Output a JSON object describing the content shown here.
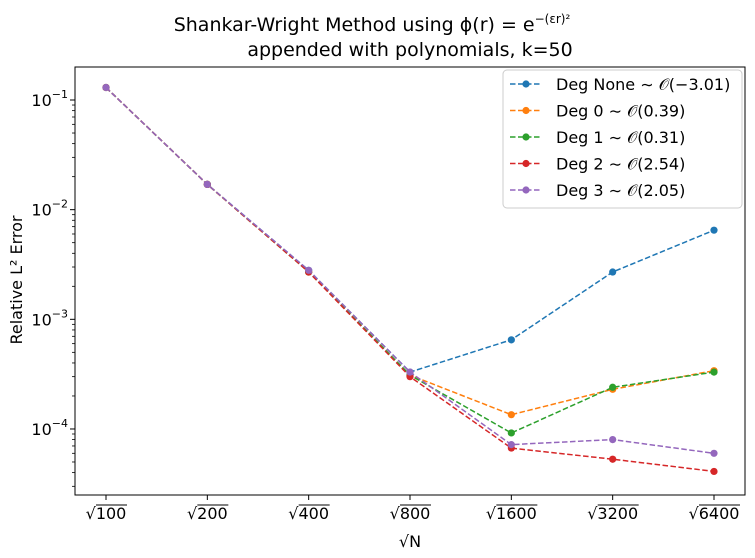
{
  "chart_data": {
    "type": "line",
    "title_line1": "Shankar-Wright Method using ϕ(r) = e",
    "title_exponent": "−(εr)²",
    "title_line2": "appended with polynomials, k=50",
    "xlabel": "√N",
    "ylabel": "Relative L² Error",
    "y_scale": "log",
    "ylim": [
      2.5e-05,
      0.2
    ],
    "y_ticks": [
      {
        "value": 0.1,
        "base": "10",
        "exp": "−1"
      },
      {
        "value": 0.01,
        "base": "10",
        "exp": "−2"
      },
      {
        "value": 0.001,
        "base": "10",
        "exp": "−3"
      },
      {
        "value": 0.0001,
        "base": "10",
        "exp": "−4"
      }
    ],
    "categories": [
      "100",
      "200",
      "400",
      "800",
      "1600",
      "3200",
      "6400"
    ],
    "grid": false,
    "legend_position": "top-right",
    "series": [
      {
        "name": "Deg None ∼ 𝒪(−3.01)",
        "color": "#1f77b4",
        "values": [
          0.13,
          0.017,
          0.0028,
          0.00033,
          0.00065,
          0.0027,
          0.0065
        ]
      },
      {
        "name": "Deg 0 ∼ 𝒪(0.39)",
        "color": "#ff7f0e",
        "values": [
          0.13,
          0.017,
          0.0027,
          0.00031,
          0.000135,
          0.00023,
          0.00034
        ]
      },
      {
        "name": "Deg 1 ∼ 𝒪(0.31)",
        "color": "#2ca02c",
        "values": [
          0.13,
          0.017,
          0.0027,
          0.00031,
          9.2e-05,
          0.00024,
          0.00033
        ]
      },
      {
        "name": "Deg 2 ∼ 𝒪(2.54)",
        "color": "#d62728",
        "values": [
          0.13,
          0.017,
          0.0027,
          0.0003,
          6.7e-05,
          5.3e-05,
          4.1e-05
        ]
      },
      {
        "name": "Deg 3 ∼ 𝒪(2.05)",
        "color": "#9467bd",
        "values": [
          0.13,
          0.017,
          0.0028,
          0.00033,
          7.2e-05,
          8e-05,
          6e-05
        ]
      }
    ]
  }
}
